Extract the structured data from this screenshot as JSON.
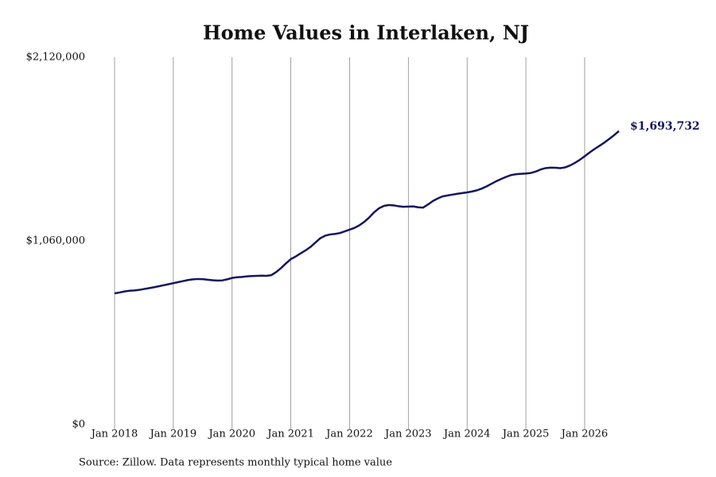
{
  "chart_data": {
    "type": "line",
    "title": "Home Values in Interlaken, NJ",
    "source": "Source: Zillow. Data represents monthly typical home value",
    "x": [
      "2018-01",
      "2018-02",
      "2018-03",
      "2018-04",
      "2018-05",
      "2018-06",
      "2018-07",
      "2018-08",
      "2018-09",
      "2018-10",
      "2018-11",
      "2018-12",
      "2019-01",
      "2019-02",
      "2019-03",
      "2019-04",
      "2019-05",
      "2019-06",
      "2019-07",
      "2019-08",
      "2019-09",
      "2019-10",
      "2019-11",
      "2019-12",
      "2020-01",
      "2020-02",
      "2020-03",
      "2020-04",
      "2020-05",
      "2020-06",
      "2020-07",
      "2020-08",
      "2020-09",
      "2020-10",
      "2020-11",
      "2020-12",
      "2021-01",
      "2021-02",
      "2021-03",
      "2021-04",
      "2021-05",
      "2021-06",
      "2021-07",
      "2021-08",
      "2021-09",
      "2021-10",
      "2021-11",
      "2021-12",
      "2022-01",
      "2022-02",
      "2022-03",
      "2022-04",
      "2022-05",
      "2022-06",
      "2022-07",
      "2022-08",
      "2022-09",
      "2022-10",
      "2022-11",
      "2022-12",
      "2023-01",
      "2023-02",
      "2023-03",
      "2023-04",
      "2023-05",
      "2023-06",
      "2023-07",
      "2023-08",
      "2023-09",
      "2023-10",
      "2023-11",
      "2023-12",
      "2024-01",
      "2024-02",
      "2024-03",
      "2024-04",
      "2024-05",
      "2024-06",
      "2024-07",
      "2024-08",
      "2024-09",
      "2024-10",
      "2024-11",
      "2024-12",
      "2025-01",
      "2025-02",
      "2025-03",
      "2025-04",
      "2025-05",
      "2025-06",
      "2025-07",
      "2025-08",
      "2025-09",
      "2025-10",
      "2025-11",
      "2025-12",
      "2026-01",
      "2026-02",
      "2026-03",
      "2026-04",
      "2026-05",
      "2026-06",
      "2026-07",
      "2026-08"
    ],
    "series": [
      {
        "name": "Typical home value",
        "color": "#15155e",
        "values": [
          757000,
          762000,
          768000,
          772000,
          774000,
          777000,
          782000,
          787000,
          792000,
          798000,
          804000,
          810000,
          816000,
          822000,
          828000,
          834000,
          838000,
          840000,
          839000,
          836000,
          833000,
          831000,
          832000,
          838000,
          846000,
          850000,
          852000,
          855000,
          857000,
          858000,
          859000,
          858000,
          862000,
          880000,
          903000,
          930000,
          955000,
          970000,
          988000,
          1005000,
          1025000,
          1050000,
          1075000,
          1090000,
          1097000,
          1100000,
          1105000,
          1115000,
          1125000,
          1135000,
          1150000,
          1170000,
          1195000,
          1225000,
          1248000,
          1262000,
          1267000,
          1265000,
          1260000,
          1257000,
          1258000,
          1259000,
          1254000,
          1252000,
          1270000,
          1290000,
          1305000,
          1317000,
          1322000,
          1327000,
          1332000,
          1336000,
          1340000,
          1345000,
          1352000,
          1362000,
          1375000,
          1390000,
          1405000,
          1418000,
          1430000,
          1440000,
          1445000,
          1447000,
          1449000,
          1452000,
          1460000,
          1472000,
          1480000,
          1483000,
          1482000,
          1480000,
          1484000,
          1495000,
          1510000,
          1528000,
          1548000,
          1570000,
          1590000,
          1608000,
          1627000,
          1648000,
          1670000,
          1693732
        ]
      }
    ],
    "end_label": "$1,693,732",
    "xlim": [
      "2018-01",
      "2026-08"
    ],
    "xticks": [
      {
        "value": "2018-01",
        "label": "Jan 2018"
      },
      {
        "value": "2019-01",
        "label": "Jan 2019"
      },
      {
        "value": "2020-01",
        "label": "Jan 2020"
      },
      {
        "value": "2021-01",
        "label": "Jan 2021"
      },
      {
        "value": "2022-01",
        "label": "Jan 2022"
      },
      {
        "value": "2023-01",
        "label": "Jan 2023"
      },
      {
        "value": "2024-01",
        "label": "Jan 2024"
      },
      {
        "value": "2025-01",
        "label": "Jan 2025"
      },
      {
        "value": "2026-01",
        "label": "Jan 2026"
      }
    ],
    "ylim": [
      0,
      2120000
    ],
    "yticks": [
      {
        "value": 0,
        "label": "$0"
      },
      {
        "value": 1060000,
        "label": "$1,060,000"
      },
      {
        "value": 2120000,
        "label": "$2,120,000"
      }
    ],
    "grid": "x"
  }
}
